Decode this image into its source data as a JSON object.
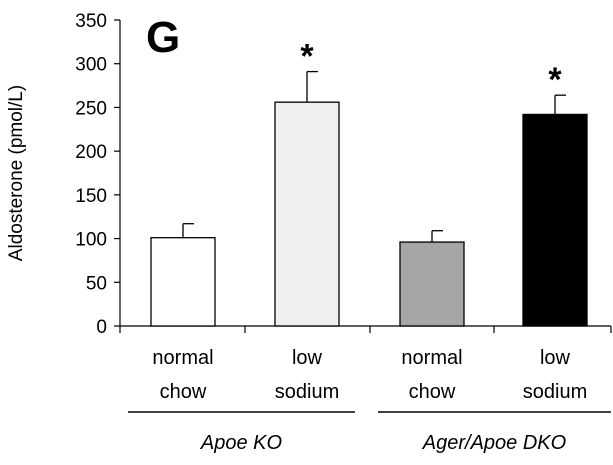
{
  "chart_data": {
    "type": "bar",
    "panel_label": "G",
    "ylabel": "Aldosterone (pmol/L)",
    "ylim": [
      0,
      350
    ],
    "yticks": [
      "0",
      "50",
      "100",
      "150",
      "200",
      "250",
      "300",
      "350"
    ],
    "categories": [
      {
        "line1": "normal",
        "line2": "chow"
      },
      {
        "line1": "low",
        "line2": "sodium"
      },
      {
        "line1": "normal",
        "line2": "chow"
      },
      {
        "line1": "low",
        "line2": "sodium"
      }
    ],
    "values": [
      101,
      256,
      96,
      242
    ],
    "errors": [
      16,
      35,
      13,
      22
    ],
    "bar_colors": [
      "#ffffff",
      "#f0f0f0",
      "#a6a6a6",
      "#000000"
    ],
    "significance": [
      "",
      "*",
      "",
      "*"
    ],
    "groups": [
      {
        "label": "Apoe KO",
        "categories": [
          0,
          1
        ]
      },
      {
        "label": "Ager/Apoe DKO",
        "categories": [
          2,
          3
        ]
      }
    ]
  }
}
